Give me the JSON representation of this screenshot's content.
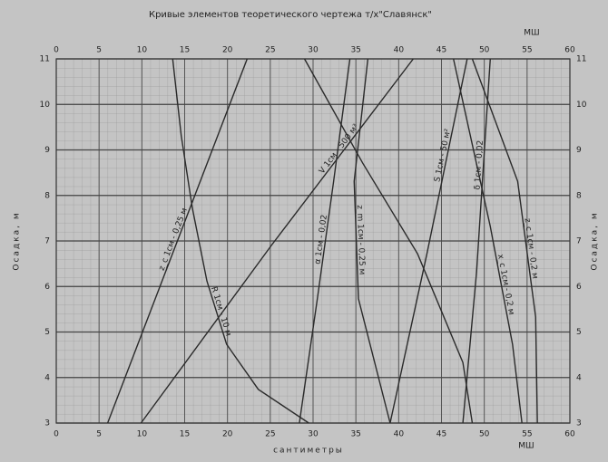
{
  "chart_data": {
    "type": "line",
    "title": "Кривые элементов теоретического чертежа т/х\"Славянск\"",
    "xlabel": "сантиметры",
    "x2label": "МШ",
    "ylabel": "Осадка, м",
    "xlim": [
      0,
      60
    ],
    "xticks": [
      0,
      5,
      10,
      15,
      20,
      25,
      30,
      35,
      40,
      45,
      50,
      55,
      60
    ],
    "ylim": [
      3,
      11
    ],
    "yticks": [
      3,
      4,
      5,
      6,
      7,
      8,
      9,
      10,
      11
    ],
    "grid": true,
    "color": "#2a2a2a",
    "series": [
      {
        "name": "z_c 1см - 0,25 м",
        "x": [
          6.0,
          22.3
        ],
        "values": [
          3,
          11
        ]
      },
      {
        "name": "R 1см - 10 м",
        "x": [
          13.6,
          14.6,
          15.9,
          17.6,
          19.9,
          23.6,
          29.5
        ],
        "values": [
          11,
          9.31,
          7.72,
          6.12,
          4.73,
          3.74,
          3
        ]
      },
      {
        "name": "V 1см - 500 м³",
        "x": [
          9.9,
          25.2,
          41.7
        ],
        "values": [
          3,
          6.92,
          11
        ]
      },
      {
        "name": "α 1см - 0,02",
        "x": [
          28.4,
          30.5,
          32.4,
          34.3
        ],
        "values": [
          3,
          5.73,
          8.31,
          11
        ]
      },
      {
        "name": "z_m 1см - 0,25 м",
        "x": [
          39.0,
          35.3,
          34.8,
          36.4
        ],
        "values": [
          3,
          5.73,
          8.31,
          11
        ]
      },
      {
        "x": [
          29.0,
          35.8,
          42.2,
          47.5,
          48.6
        ],
        "values": [
          11,
          8.71,
          6.72,
          4.33,
          3
        ]
      },
      {
        "name": "S 1см - 50 м²",
        "x": [
          39.0,
          43.3,
          48.0
        ],
        "values": [
          3,
          6.72,
          11
        ]
      },
      {
        "name": "δ 1см - 0,02",
        "x": [
          47.5,
          49.1,
          50.7
        ],
        "values": [
          3,
          6.32,
          11
        ]
      },
      {
        "name": "x_c 1см - 0,2 м",
        "x": [
          46.4,
          50.7,
          53.3,
          54.4
        ],
        "values": [
          11,
          7.32,
          4.73,
          3
        ]
      },
      {
        "name": "z_c 1см - 0,2 м",
        "x": [
          48.6,
          53.9,
          56.0,
          56.2
        ],
        "values": [
          11,
          8.31,
          5.33,
          3
        ]
      }
    ]
  }
}
